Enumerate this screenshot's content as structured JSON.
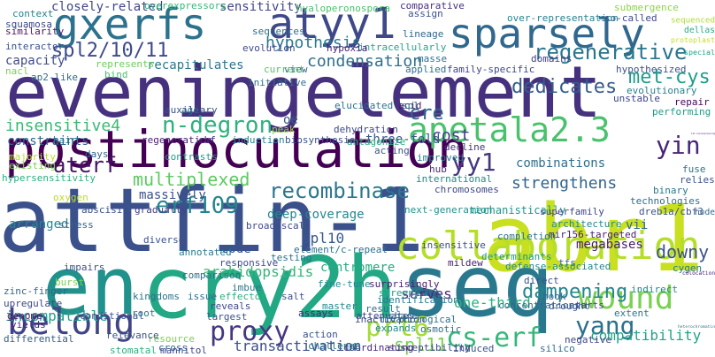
{
  "words": [
    {
      "text": "eveningelement",
      "color": "#46317e"
    },
    {
      "text": "abr1",
      "color": "#c8e020"
    },
    {
      "text": "attfin-1",
      "color": "#3b518b"
    },
    {
      "text": "cry2h",
      "color": "#22a884"
    },
    {
      "text": "seq",
      "color": "#2a788e"
    },
    {
      "text": "en",
      "color": "#21918c"
    },
    {
      "text": "postinoculation",
      "color": "#440154"
    },
    {
      "text": "sparsely",
      "color": "#31688e"
    },
    {
      "text": "gxerfs",
      "color": "#2c728e"
    },
    {
      "text": "atyy1",
      "color": "#3f4889"
    },
    {
      "text": "collaboration",
      "color": "#b5de2b"
    },
    {
      "text": "belong",
      "color": "#414487"
    },
    {
      "text": "apetala2.3",
      "color": "#4ac16d"
    },
    {
      "text": "wound",
      "color": "#7ad151"
    },
    {
      "text": "recombinase",
      "color": "#2a778e"
    },
    {
      "text": "spl2/10/11",
      "color": "#3e4a89"
    },
    {
      "text": "n-degron",
      "color": "#2db27d"
    },
    {
      "text": "cs-erf",
      "color": "#35b779"
    },
    {
      "text": "prt6",
      "color": "#a5db36"
    },
    {
      "text": "proxy",
      "color": "#453781"
    },
    {
      "text": "erf109",
      "color": "#25858e"
    },
    {
      "text": "regenerative",
      "color": "#2a768e"
    },
    {
      "text": "met-cys",
      "color": "#1f9e89"
    },
    {
      "text": "dedicates",
      "color": "#365c8d"
    },
    {
      "text": "cre",
      "color": "#33638d"
    },
    {
      "text": "yin",
      "color": "#482576"
    },
    {
      "text": "yy1",
      "color": "#453882"
    },
    {
      "text": "yang",
      "color": "#2d718e"
    },
    {
      "text": "dampening",
      "color": "#25848e"
    },
    {
      "text": "condensation",
      "color": "#2d708e"
    },
    {
      "text": "insensitive4",
      "color": "#3aba76"
    },
    {
      "text": "aterf",
      "color": "#471063"
    },
    {
      "text": "multiplexed",
      "color": "#5ec962"
    },
    {
      "text": "hypothesis",
      "color": "#29798e"
    },
    {
      "text": "sensitivity",
      "color": "#404588"
    },
    {
      "text": "strengthens",
      "color": "#32658e"
    },
    {
      "text": "combinations",
      "color": "#2e6f8e"
    },
    {
      "text": "deep-coverage",
      "color": "#23898e"
    },
    {
      "text": "spl10",
      "color": "#38588c"
    },
    {
      "text": "spl11",
      "color": "#7ad151"
    },
    {
      "text": "arabidopsidis",
      "color": "#35b779"
    },
    {
      "text": "centromere",
      "color": "#25ac82"
    },
    {
      "text": "megabases",
      "color": "#481c6e"
    },
    {
      "text": "downy",
      "color": "#3b528b"
    },
    {
      "text": "compatibility",
      "color": "#20a386"
    },
    {
      "text": "transactivation",
      "color": "#3d4d8a"
    },
    {
      "text": "incompatible",
      "color": "#1fa088"
    },
    {
      "text": "serves",
      "color": "#472c7a"
    },
    {
      "text": "one-third",
      "color": "#2ab07f"
    },
    {
      "text": "cost",
      "color": "#443983"
    },
    {
      "text": "mechanistically",
      "color": "#1f958b"
    },
    {
      "text": "constraints",
      "color": "#31668e"
    },
    {
      "text": "recapitulates",
      "color": "#2a788e"
    },
    {
      "text": "capacity",
      "color": "#3e4c8a"
    },
    {
      "text": "massively",
      "color": "#3c508b"
    },
    {
      "text": "arranged",
      "color": "#23888e"
    },
    {
      "text": "closely-related",
      "color": "#3f4788"
    },
    {
      "text": "code",
      "color": "#3b528b"
    },
    {
      "text": "three-fold",
      "color": "#38598c"
    },
    {
      "text": "vii",
      "color": "#2f6b8e"
    },
    {
      "text": "hyaloperonospora",
      "color": "#4ac16d"
    },
    {
      "text": "overexpressors",
      "color": "#35b779"
    },
    {
      "text": "comparative",
      "color": "#46307e"
    },
    {
      "text": "submergence",
      "color": "#8bd646"
    },
    {
      "text": "so-called",
      "color": "#3e4989"
    },
    {
      "text": "assign",
      "color": "#3b528b"
    },
    {
      "text": "over-representation",
      "color": "#26828e"
    },
    {
      "text": "sequenced",
      "color": "#addc30"
    },
    {
      "text": "dellas",
      "color": "#26ad81"
    },
    {
      "text": "protoplast",
      "color": "#c2df23"
    },
    {
      "text": "special",
      "color": "#1e9c89"
    },
    {
      "text": "lineage",
      "color": "#31688e"
    },
    {
      "text": "intracellularly",
      "color": "#22a785"
    },
    {
      "text": "masse",
      "color": "#2c738e"
    },
    {
      "text": "family-specific",
      "color": "#3f4889"
    },
    {
      "text": "domains",
      "color": "#433e85"
    },
    {
      "text": "hypothesized",
      "color": "#3b528b"
    },
    {
      "text": "evolutionary",
      "color": "#27808e"
    },
    {
      "text": "unstable",
      "color": "#3f4788"
    },
    {
      "text": "repair",
      "color": "#450559"
    },
    {
      "text": "performing",
      "color": "#1f998a"
    },
    {
      "text": "111-overexpressing",
      "color": "#482173"
    },
    {
      "text": "hypoxia",
      "color": "#482475"
    },
    {
      "text": "view",
      "color": "#34618d"
    },
    {
      "text": "applied",
      "color": "#2c728e"
    },
    {
      "text": "acid",
      "color": "#481769"
    },
    {
      "text": "context",
      "color": "#26828e"
    },
    {
      "text": "squamosa",
      "color": "#3f4889"
    },
    {
      "text": "similarity",
      "color": "#471365"
    },
    {
      "text": "interactor",
      "color": "#3b528b"
    },
    {
      "text": "nacl",
      "color": "#7ad151"
    },
    {
      "text": "ap2-like",
      "color": "#2e6e8e"
    },
    {
      "text": "represents",
      "color": "#6ccd5a"
    },
    {
      "text": "bind",
      "color": "#46c06f"
    },
    {
      "text": "age",
      "color": "#2f6c8e"
    },
    {
      "text": "current",
      "color": "#54c568"
    },
    {
      "text": "elucidated",
      "color": "#2c728e"
    },
    {
      "text": "spl",
      "color": "#2e6f8e"
    },
    {
      "text": "oe",
      "color": "#38598c"
    },
    {
      "text": "dehydration",
      "color": "#3e4a89"
    },
    {
      "text": "antagonize",
      "color": "#2ab07f"
    },
    {
      "text": "peak",
      "color": "#8ed645"
    },
    {
      "text": "hair",
      "color": "#2a788e"
    },
    {
      "text": "cbf",
      "color": "#482979"
    },
    {
      "text": "induction",
      "color": "#25838e"
    },
    {
      "text": "biosynthesis",
      "color": "#3b528b"
    },
    {
      "text": "regeneration",
      "color": "#481f70"
    },
    {
      "text": "days",
      "color": "#31688e"
    },
    {
      "text": "oxygen",
      "color": "#bade28"
    },
    {
      "text": "majority",
      "color": "#b8de29"
    },
    {
      "text": "existing",
      "color": "#7ad151"
    },
    {
      "text": "hypersensitivity",
      "color": "#2ab07f"
    },
    {
      "text": "abscisic",
      "color": "#3d4e8a"
    },
    {
      "text": "contrasts",
      "color": "#1fa188"
    },
    {
      "text": "gradually",
      "color": "#414287"
    },
    {
      "text": "stress",
      "color": "#355f8d"
    },
    {
      "text": "acting",
      "color": "#3b528b"
    },
    {
      "text": "improved",
      "color": "#2a788e"
    },
    {
      "text": "hub",
      "color": "#482878"
    },
    {
      "text": "international",
      "color": "#23898e"
    },
    {
      "text": "chromosomes",
      "color": "#3e4989"
    },
    {
      "text": "decline",
      "color": "#46327e"
    },
    {
      "text": "fuse",
      "color": "#2c738e"
    },
    {
      "text": "relies",
      "color": "#3b528b"
    },
    {
      "text": "binary",
      "color": "#2a788e"
    },
    {
      "text": "technologies",
      "color": "#2e6e8e"
    },
    {
      "text": "node",
      "color": "#31688e"
    },
    {
      "text": "superfamily",
      "color": "#3f4788"
    },
    {
      "text": "architecture",
      "color": "#23888e"
    },
    {
      "text": "mir156-targeted",
      "color": "#482071"
    },
    {
      "text": "dreb1a/cbf3",
      "color": "#3b528b"
    },
    {
      "text": "cygen",
      "color": "#2a788e"
    },
    {
      "text": "completion",
      "color": "#2c728e"
    },
    {
      "text": "next-generation",
      "color": "#21918c"
    },
    {
      "text": "broad-scale",
      "color": "#3e4a89"
    },
    {
      "text": "element/c-repeat",
      "color": "#2e6f8e"
    },
    {
      "text": "determinants",
      "color": "#1f978b"
    },
    {
      "text": "insensitive",
      "color": "#3b528b"
    },
    {
      "text": "tfs",
      "color": "#31688e"
    },
    {
      "text": "defense-associated",
      "color": "#23888e"
    },
    {
      "text": "mildew",
      "color": "#482071"
    },
    {
      "text": "diverse",
      "color": "#3b528b"
    },
    {
      "text": "annotated",
      "color": "#2a788e"
    },
    {
      "text": "testing",
      "color": "#2c728e"
    },
    {
      "text": "responsive",
      "color": "#3e4a89"
    },
    {
      "text": "comparison",
      "color": "#2e6f8e"
    },
    {
      "text": "impairs",
      "color": "#3b528b"
    },
    {
      "text": "zinc-finger",
      "color": "#31688e"
    },
    {
      "text": "upregulate",
      "color": "#3f4788"
    },
    {
      "text": "genome",
      "color": "#481769"
    },
    {
      "text": "yields",
      "color": "#482475"
    },
    {
      "text": "differential",
      "color": "#34618d"
    },
    {
      "text": "kingdoms",
      "color": "#2c728e"
    },
    {
      "text": "burst",
      "color": "#7ad151"
    },
    {
      "text": "conditional",
      "color": "#3b528b"
    },
    {
      "text": "root",
      "color": "#2a788e"
    },
    {
      "text": "issue",
      "color": "#2e6f8e"
    },
    {
      "text": "effector",
      "color": "#2ab07f"
    },
    {
      "text": "reveals",
      "color": "#3e4a89"
    },
    {
      "text": "largest",
      "color": "#3b528b"
    },
    {
      "text": "assays",
      "color": "#482878"
    },
    {
      "text": "master",
      "color": "#23898e"
    },
    {
      "text": "screens",
      "color": "#1fa188"
    },
    {
      "text": "c2h2",
      "color": "#3b528b"
    },
    {
      "text": "identification",
      "color": "#2a788e"
    },
    {
      "text": "result",
      "color": "#2c728e"
    },
    {
      "text": "attenuates",
      "color": "#3e4a89"
    },
    {
      "text": "share",
      "color": "#2e6f8e"
    },
    {
      "text": "direct",
      "color": "#3b528b"
    },
    {
      "text": "hook",
      "color": "#31688e"
    },
    {
      "text": "starts",
      "color": "#3f4788"
    },
    {
      "text": "indirect",
      "color": "#23888e"
    },
    {
      "text": "colocation",
      "color": "#482071"
    },
    {
      "text": "drought",
      "color": "#3b528b"
    },
    {
      "text": "extent",
      "color": "#2a788e"
    },
    {
      "text": "heterochromatin",
      "color": "#2c728e"
    },
    {
      "text": "negative",
      "color": "#3e4a89"
    },
    {
      "text": "silico",
      "color": "#2e6f8e"
    },
    {
      "text": "induced",
      "color": "#3b528b"
    },
    {
      "text": "concentrations",
      "color": "#31688e"
    },
    {
      "text": "susceptibility",
      "color": "#3f4788"
    },
    {
      "text": "expands",
      "color": "#23898e"
    },
    {
      "text": "coordinating",
      "color": "#482878"
    },
    {
      "text": "action",
      "color": "#3b528b"
    },
    {
      "text": "challenge",
      "color": "#2a788e"
    },
    {
      "text": "osmotic",
      "color": "#2c728e"
    },
    {
      "text": "inactivation",
      "color": "#3e4a89"
    },
    {
      "text": "morphological",
      "color": "#2e6f8e"
    },
    {
      "text": "resource",
      "color": "#7ad151"
    },
    {
      "text": "relevance",
      "color": "#3b528b"
    },
    {
      "text": "cross",
      "color": "#31688e"
    },
    {
      "text": "stomatal",
      "color": "#2ab07f"
    },
    {
      "text": "mannitol",
      "color": "#3f4788"
    },
    {
      "text": "fine-tune",
      "color": "#23888e"
    },
    {
      "text": "surprisingly",
      "color": "#482071"
    },
    {
      "text": "salt",
      "color": "#3b528b"
    },
    {
      "text": "imbue",
      "color": "#2a788e"
    },
    {
      "text": "initiative",
      "color": "#2c728e"
    },
    {
      "text": "evolution",
      "color": "#3e4a89"
    },
    {
      "text": "sequences",
      "color": "#2e6f8e"
    },
    {
      "text": "auxiliary",
      "color": "#3b528b"
    },
    {
      "text": "uncovering",
      "color": "#31688e"
    }
  ]
}
